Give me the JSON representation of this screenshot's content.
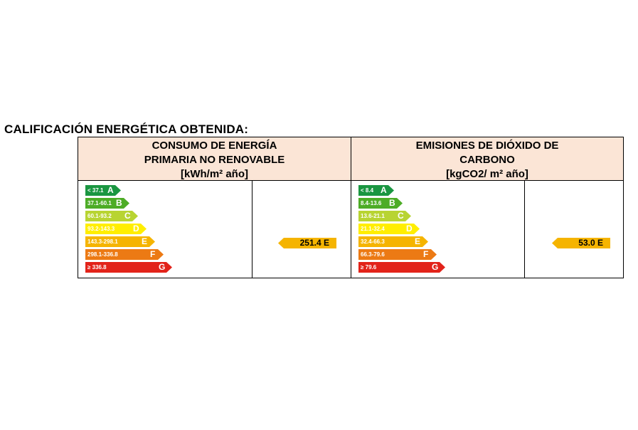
{
  "title": "CALIFICACIÓN ENERGÉTICA OBTENIDA:",
  "energy": {
    "header": [
      "CONSUMO DE ENERGÍA",
      "PRIMARIA NO RENOVABLE",
      "[kWh/m² año]"
    ],
    "scale": [
      {
        "range": "< 37.1",
        "letter": "A",
        "color": "#1a9641"
      },
      {
        "range": "37.1-60.1",
        "letter": "B",
        "color": "#4dac26"
      },
      {
        "range": "60.1-93.2",
        "letter": "C",
        "color": "#b8d432"
      },
      {
        "range": "93.2-143.3",
        "letter": "D",
        "color": "#ffee00"
      },
      {
        "range": "143.3-298.1",
        "letter": "E",
        "color": "#f5b400"
      },
      {
        "range": "298.1-336.8",
        "letter": "F",
        "color": "#ec7a14"
      },
      {
        "range": "≥ 336.8",
        "letter": "G",
        "color": "#e2231a"
      }
    ],
    "result": "251.4 E",
    "result_color": "#f5b400"
  },
  "co2": {
    "header": [
      "EMISIONES DE DIÓXIDO DE",
      "CARBONO",
      "[kgCO2/ m² año]"
    ],
    "scale": [
      {
        "range": "< 8.4",
        "letter": "A",
        "color": "#1a9641"
      },
      {
        "range": "8.4-13.6",
        "letter": "B",
        "color": "#4dac26"
      },
      {
        "range": "13.6-21.1",
        "letter": "C",
        "color": "#b8d432"
      },
      {
        "range": "21.1-32.4",
        "letter": "D",
        "color": "#ffee00"
      },
      {
        "range": "32.4-66.3",
        "letter": "E",
        "color": "#f5b400"
      },
      {
        "range": "66.3-79.6",
        "letter": "F",
        "color": "#ec7a14"
      },
      {
        "range": "≥ 79.6",
        "letter": "G",
        "color": "#e2231a"
      }
    ],
    "result": "53.0 E",
    "result_color": "#f5b400"
  }
}
